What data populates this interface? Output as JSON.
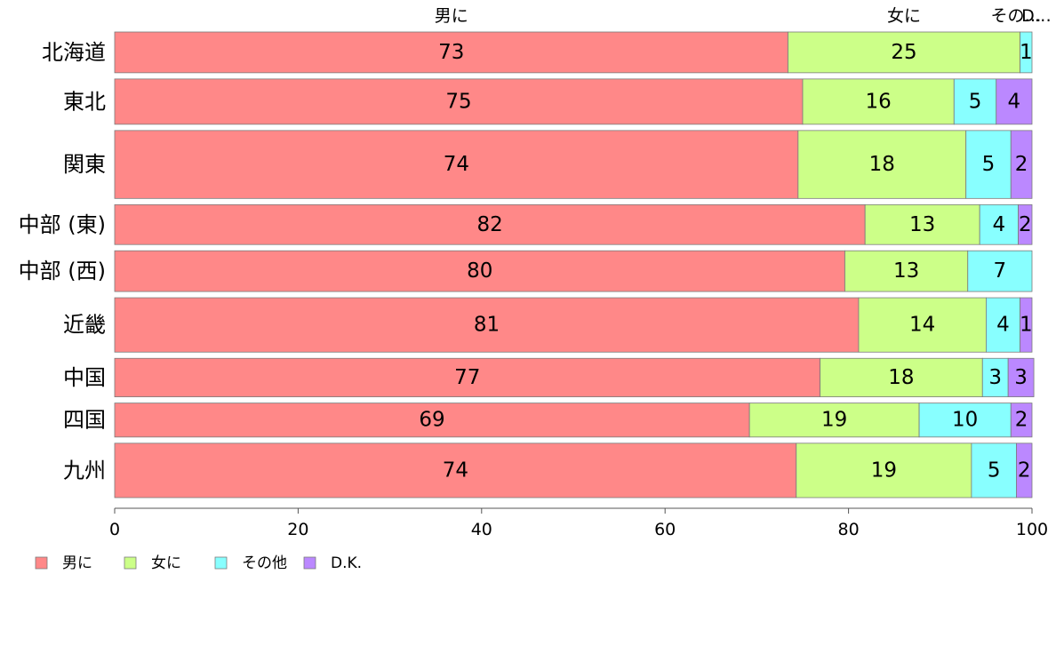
{
  "chart_data": {
    "type": "bar",
    "orientation": "horizontal",
    "stacked": true,
    "xlim": [
      0,
      100
    ],
    "x_ticks": [
      "0",
      "20",
      "40",
      "60",
      "80",
      "100"
    ],
    "grid": false,
    "legend_position": "bottom-left",
    "top_labels": [
      "男に",
      "女に",
      "その…",
      "D…"
    ],
    "categories": [
      "北海道",
      "東北",
      "関東",
      "中部 (東)",
      "中部 (西)",
      "近畿",
      "中国",
      "四国",
      "九州"
    ],
    "series": [
      {
        "name": "男に",
        "color": "#FF8888",
        "values": [
          73.4,
          75.0,
          74.5,
          81.8,
          79.6,
          81.1,
          76.9,
          69.2,
          74.3
        ],
        "labels": [
          "73",
          "75",
          "74",
          "82",
          "80",
          "81",
          "77",
          "69",
          "74"
        ]
      },
      {
        "name": "女に",
        "color": "#CCFF88",
        "values": [
          25.3,
          16.5,
          18.3,
          12.5,
          13.4,
          13.9,
          17.7,
          18.5,
          19.1
        ],
        "labels": [
          "25",
          "16",
          "18",
          "13",
          "13",
          "14",
          "18",
          "19",
          "19"
        ]
      },
      {
        "name": "その他",
        "color": "#88FFFF",
        "values": [
          1.3,
          4.6,
          4.9,
          4.2,
          7.0,
          3.7,
          2.8,
          10.0,
          4.9
        ],
        "labels": [
          "1",
          "5",
          "5",
          "4",
          "7",
          "4",
          "3",
          "10",
          "5"
        ]
      },
      {
        "name": "D.K.",
        "color": "#BB88FF",
        "values": [
          0.0,
          3.9,
          2.3,
          1.5,
          0.0,
          1.3,
          2.8,
          2.3,
          1.7
        ],
        "labels": [
          "",
          "4",
          "2",
          "2",
          "",
          "1",
          "3",
          "2",
          "2"
        ]
      }
    ],
    "row_weights": [
      0.9,
      1.0,
      1.5,
      0.88,
      0.9,
      1.2,
      0.85,
      0.75,
      1.2
    ]
  }
}
